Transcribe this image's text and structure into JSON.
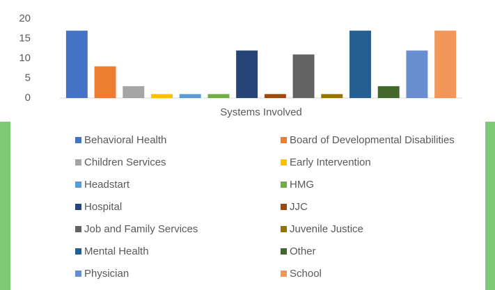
{
  "chart_data": {
    "type": "bar",
    "categories": [
      "Systems Involved"
    ],
    "series": [
      {
        "name": "Behavioral Health",
        "color": "#4472c4",
        "values": [
          17
        ]
      },
      {
        "name": "Board of Developmental Disabilities",
        "color": "#ed7d31",
        "values": [
          8
        ]
      },
      {
        "name": "Children Services",
        "color": "#a5a5a5",
        "values": [
          3
        ]
      },
      {
        "name": "Early Intervention",
        "color": "#ffc000",
        "values": [
          1
        ]
      },
      {
        "name": "Headstart",
        "color": "#5b9bd5",
        "values": [
          1
        ]
      },
      {
        "name": "HMG",
        "color": "#70ad47",
        "values": [
          1
        ]
      },
      {
        "name": "Hospital",
        "color": "#264478",
        "values": [
          12
        ]
      },
      {
        "name": "JJC",
        "color": "#9e480e",
        "values": [
          1
        ]
      },
      {
        "name": "Job and Family Services",
        "color": "#636363",
        "values": [
          11
        ]
      },
      {
        "name": "Juvenile Justice",
        "color": "#997300",
        "values": [
          1
        ]
      },
      {
        "name": "Mental Health",
        "color": "#255e91",
        "values": [
          17
        ]
      },
      {
        "name": "Other",
        "color": "#43682b",
        "values": [
          3
        ]
      },
      {
        "name": "Physician",
        "color": "#698ed0",
        "values": [
          12
        ]
      },
      {
        "name": "School",
        "color": "#f1975a",
        "values": [
          17
        ]
      }
    ],
    "ylim": [
      0,
      20
    ],
    "yticks": [
      0,
      5,
      10,
      15,
      20
    ],
    "grid": false,
    "legend": "bottom"
  }
}
